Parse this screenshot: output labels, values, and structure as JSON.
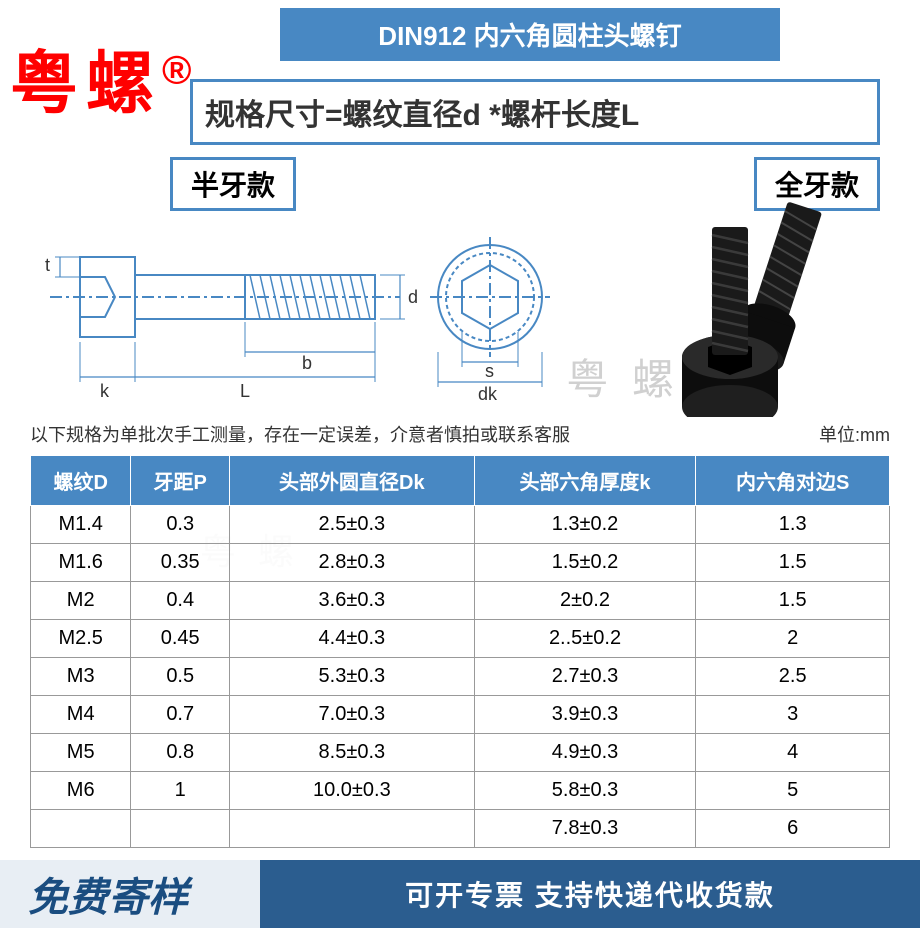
{
  "header": {
    "title": "DIN912 内六角圆柱头螺钉"
  },
  "watermark": {
    "text": "粤螺",
    "symbol": "®",
    "color": "#ff0000"
  },
  "faint_watermark": "粤 螺",
  "formula": "规格尺寸=螺纹直径d *螺杆长度L",
  "type_labels": {
    "left": "半牙款",
    "right": "全牙款"
  },
  "diagram": {
    "dims": {
      "t": "t",
      "k": "k",
      "L": "L",
      "b": "b",
      "d": "d",
      "s": "s",
      "dk": "dk"
    },
    "line_color": "#4888c3"
  },
  "note": {
    "left": "以下规格为单批次手工测量，存在一定误差，介意者慎拍或联系客服",
    "right": "单位:mm"
  },
  "table": {
    "headers": [
      "螺纹D",
      "牙距P",
      "头部外圆直径Dk",
      "头部六角厚度k",
      "内六角对边S"
    ],
    "rows": [
      [
        "M1.4",
        "0.3",
        "2.5±0.3",
        "1.3±0.2",
        "1.3"
      ],
      [
        "M1.6",
        "0.35",
        "2.8±0.3",
        "1.5±0.2",
        "1.5"
      ],
      [
        "M2",
        "0.4",
        "3.6±0.3",
        "2±0.2",
        "1.5"
      ],
      [
        "M2.5",
        "0.45",
        "4.4±0.3",
        "2..5±0.2",
        "2"
      ],
      [
        "M3",
        "0.5",
        "5.3±0.3",
        "2.7±0.3",
        "2.5"
      ],
      [
        "M4",
        "0.7",
        "7.0±0.3",
        "3.9±0.3",
        "3"
      ],
      [
        "M5",
        "0.8",
        "8.5±0.3",
        "4.9±0.3",
        "4"
      ],
      [
        "M6",
        "1",
        "10.0±0.3",
        "5.8±0.3",
        "5"
      ],
      [
        "",
        "",
        "",
        "7.8±0.3",
        "6"
      ]
    ],
    "header_bg": "#4888c3",
    "border_color": "#999999"
  },
  "footer": {
    "left": "免费寄样",
    "right": "可开专票 支持快递代收货款",
    "left_bg": "#e8eef4",
    "right_bg": "#2b5d8f"
  }
}
